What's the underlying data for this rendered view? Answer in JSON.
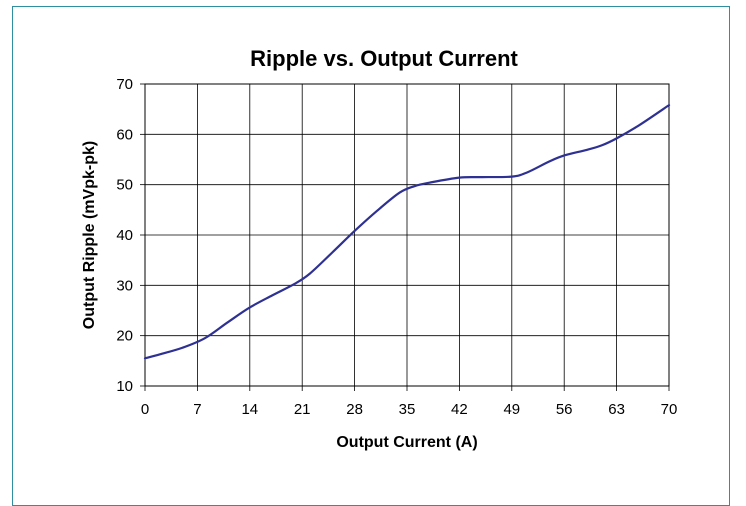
{
  "chart_data": {
    "type": "line",
    "title": "Ripple vs. Output Current",
    "xlabel": "Output Current (A)",
    "ylabel": "Output Ripple (mVpk-pk)",
    "xlim": [
      0,
      70
    ],
    "ylim": [
      10,
      70
    ],
    "xticks": [
      0,
      7,
      14,
      21,
      28,
      35,
      42,
      49,
      56,
      63,
      70
    ],
    "yticks": [
      10,
      20,
      30,
      40,
      50,
      60,
      70
    ],
    "grid": true,
    "series": [
      {
        "x": [
          0,
          2,
          5,
          8,
          11,
          14,
          17,
          20,
          22,
          25,
          28,
          31,
          34,
          36,
          38,
          42,
          45,
          49,
          51,
          54,
          56,
          59,
          61,
          63,
          66,
          70
        ],
        "y": [
          15.5,
          16.3,
          17.6,
          19.5,
          22.6,
          25.6,
          28,
          30.3,
          32.3,
          36.5,
          40.8,
          44.8,
          48.4,
          49.7,
          50.4,
          51.4,
          51.5,
          51.6,
          52.4,
          54.6,
          55.8,
          56.9,
          57.8,
          59.2,
          61.8,
          65.8
        ],
        "color": "#2e3192"
      }
    ]
  }
}
